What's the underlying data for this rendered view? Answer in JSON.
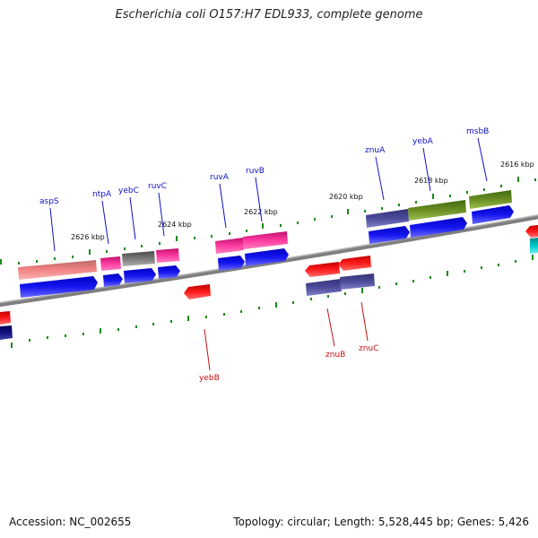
{
  "title": "Escherichia coli O157:H7 EDL933, complete genome",
  "footer": {
    "accession": "Accession: NC_002655",
    "summary": "Topology: circular; Length: 5,528,445 bp; Genes: 5,426"
  },
  "colors": {
    "backbone": "#7f7f7f",
    "tick": "#1a8a1a",
    "label_top": "#1010c8",
    "label_bottom": "#c81010",
    "blue_cds": "#1010e0",
    "red_cds": "#ee1010"
  },
  "kbp_markers": [
    {
      "label": "2626 kbp",
      "id": "2626"
    },
    {
      "label": "2624 kbp",
      "id": "2624"
    },
    {
      "label": "2622 kbp",
      "id": "2622"
    },
    {
      "label": "2620 kbp",
      "id": "2620"
    },
    {
      "label": "2618 kbp",
      "id": "2618"
    },
    {
      "label": "2616 kbp",
      "id": "2616"
    }
  ],
  "genes_top": [
    {
      "name": "aspS",
      "id": "aspS"
    },
    {
      "name": "ntpA",
      "id": "ntpA"
    },
    {
      "name": "yebC",
      "id": "yebC"
    },
    {
      "name": "ruvC",
      "id": "ruvC"
    },
    {
      "name": "ruvA",
      "id": "ruvA"
    },
    {
      "name": "ruvB",
      "id": "ruvB"
    },
    {
      "name": "znuA",
      "id": "znuA"
    },
    {
      "name": "yebA",
      "id": "yebA"
    },
    {
      "name": "msbB",
      "id": "msbB"
    }
  ],
  "genes_bottom": [
    {
      "name": "yebB",
      "id": "yebB"
    },
    {
      "name": "znuB",
      "id": "znuB"
    },
    {
      "name": "znuC",
      "id": "znuC"
    }
  ]
}
